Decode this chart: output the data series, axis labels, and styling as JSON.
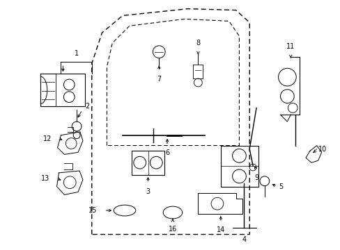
{
  "background_color": "#ffffff",
  "figure_width": 4.89,
  "figure_height": 3.6,
  "dpi": 100,
  "line_color": "#000000",
  "font_size": 7.0
}
